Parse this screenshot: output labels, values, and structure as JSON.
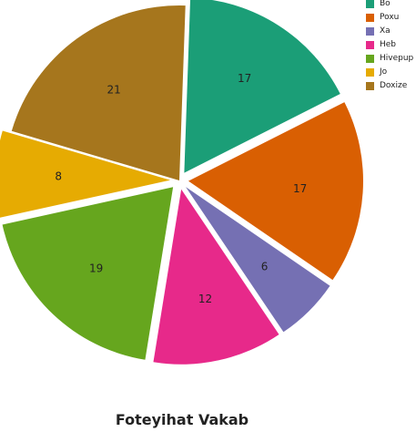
{
  "chart_data": {
    "type": "pie",
    "title": "Foteyihat Vakab",
    "legend_position": "top-right",
    "slices": [
      {
        "label": "Bo",
        "value": 17,
        "color": "#1b9e77",
        "exploded": true
      },
      {
        "label": "Poxu",
        "value": 17,
        "color": "#d95f02",
        "exploded": true
      },
      {
        "label": "Xa",
        "value": 6,
        "color": "#7570b3",
        "exploded": true
      },
      {
        "label": "Heb",
        "value": 12,
        "color": "#e7298a",
        "exploded": true
      },
      {
        "label": "Hivepup",
        "value": 19,
        "color": "#66a61e",
        "exploded": true
      },
      {
        "label": "Jo",
        "value": 8,
        "color": "#e6ab02",
        "exploded": true
      },
      {
        "label": "Doxize",
        "value": 21,
        "color": "#a6761d",
        "exploded": false
      }
    ]
  }
}
